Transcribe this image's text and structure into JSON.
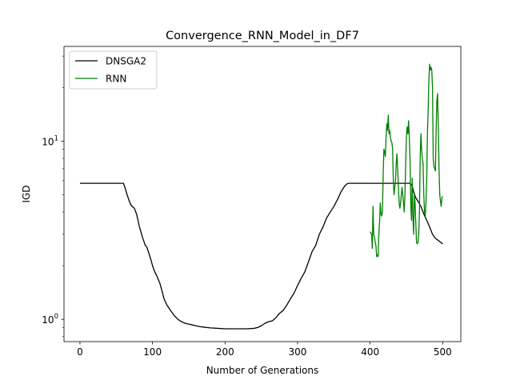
{
  "chart_data": {
    "type": "line",
    "title": "Convergence_RNN_Model_in_DF7",
    "xlabel": "Number of Generations",
    "ylabel": "IGD",
    "xlim": [
      -22,
      525
    ],
    "ylim": [
      0.75,
      34
    ],
    "yscale": "log",
    "xticks": [
      0,
      100,
      200,
      300,
      400,
      500
    ],
    "xtick_labels": [
      "0",
      "100",
      "200",
      "300",
      "400",
      "500"
    ],
    "yticks": [
      1,
      10
    ],
    "ytick_labels": [
      "10^0",
      "10^1"
    ],
    "grid": false,
    "legend_position": "top-left",
    "colors": {
      "DNSGA2": "#000000",
      "RNN": "#008000"
    },
    "series": [
      {
        "name": "DNSGA2",
        "color": "#000000",
        "x": [
          0,
          60,
          62,
          65,
          68,
          70,
          72,
          75,
          78,
          80,
          82,
          84,
          86,
          88,
          90,
          92,
          95,
          98,
          100,
          103,
          106,
          110,
          113,
          116,
          120,
          125,
          130,
          135,
          140,
          145,
          150,
          155,
          160,
          165,
          170,
          175,
          180,
          190,
          200,
          210,
          220,
          230,
          240,
          245,
          250,
          255,
          260,
          265,
          270,
          275,
          280,
          285,
          290,
          295,
          300,
          305,
          310,
          315,
          320,
          325,
          330,
          335,
          340,
          345,
          350,
          355,
          360,
          365,
          368,
          370,
          380,
          400,
          420,
          440,
          455,
          458,
          460,
          463,
          466,
          470,
          474,
          478,
          482,
          486,
          490,
          495,
          500
        ],
        "y": [
          5.8,
          5.8,
          5.5,
          5.0,
          4.6,
          4.4,
          4.3,
          4.2,
          3.9,
          3.6,
          3.3,
          3.1,
          2.9,
          2.75,
          2.6,
          2.55,
          2.35,
          2.15,
          2.0,
          1.85,
          1.75,
          1.6,
          1.45,
          1.3,
          1.2,
          1.12,
          1.05,
          1.0,
          0.97,
          0.95,
          0.94,
          0.93,
          0.92,
          0.91,
          0.905,
          0.9,
          0.895,
          0.89,
          0.885,
          0.885,
          0.885,
          0.885,
          0.89,
          0.9,
          0.92,
          0.95,
          0.97,
          0.98,
          1.02,
          1.08,
          1.12,
          1.2,
          1.3,
          1.4,
          1.55,
          1.7,
          1.85,
          2.1,
          2.4,
          2.6,
          3.0,
          3.3,
          3.7,
          4.0,
          4.3,
          4.7,
          5.2,
          5.6,
          5.75,
          5.8,
          5.8,
          5.8,
          5.8,
          5.8,
          5.8,
          5.6,
          5.2,
          4.8,
          4.6,
          4.3,
          3.9,
          3.6,
          3.3,
          3.0,
          2.85,
          2.75,
          2.65
        ]
      },
      {
        "name": "RNN",
        "color": "#008000",
        "x": [
          400,
          402,
          403,
          404,
          405,
          406,
          407,
          408,
          409,
          410,
          411,
          412,
          413,
          414,
          415,
          416,
          417,
          418,
          419,
          420,
          421,
          422,
          423,
          424,
          425,
          426,
          427,
          428,
          429,
          430,
          431,
          432,
          433,
          434,
          435,
          436,
          437,
          438,
          439,
          440,
          441,
          442,
          443,
          444,
          445,
          446,
          447,
          448,
          449,
          450,
          451,
          452,
          453,
          454,
          455,
          456,
          457,
          458,
          459,
          460,
          461,
          462,
          463,
          464,
          465,
          466,
          467,
          468,
          469,
          470,
          471,
          472,
          473,
          474,
          475,
          476,
          477,
          478,
          479,
          480,
          481,
          482,
          483,
          484,
          485,
          486,
          487,
          488,
          489,
          490,
          491,
          492,
          493,
          494,
          495,
          496,
          497,
          498,
          499,
          500
        ],
        "y": [
          3.1,
          3.0,
          2.5,
          4.3,
          3.0,
          2.9,
          2.7,
          2.6,
          2.25,
          2.3,
          2.25,
          3.0,
          3.5,
          4.5,
          3.9,
          3.8,
          4.0,
          6.5,
          9.0,
          8.7,
          8.2,
          10.5,
          12.5,
          11.5,
          14.0,
          11.0,
          11.5,
          10.5,
          10.0,
          9.8,
          9.0,
          6.0,
          5.0,
          5.5,
          6.0,
          7.5,
          8.5,
          7.0,
          5.5,
          4.5,
          4.2,
          4.5,
          5.0,
          5.5,
          5.0,
          4.5,
          4.0,
          5.0,
          7.5,
          10.5,
          12.0,
          11.0,
          13.0,
          10.5,
          8.0,
          4.5,
          3.6,
          6.2,
          3.7,
          3.0,
          5.0,
          4.5,
          3.4,
          2.7,
          2.65,
          2.7,
          3.0,
          4.0,
          8.0,
          11.0,
          9.0,
          8.0,
          7.5,
          5.0,
          4.0,
          3.8,
          4.5,
          6.0,
          11.0,
          15.0,
          22.0,
          27.0,
          25.0,
          26.0,
          25.0,
          20.0,
          8.0,
          7.2,
          7.0,
          6.8,
          11.5,
          17.0,
          18.5,
          12.0,
          7.0,
          5.0,
          4.6,
          4.3,
          4.8,
          4.9
        ]
      }
    ]
  }
}
